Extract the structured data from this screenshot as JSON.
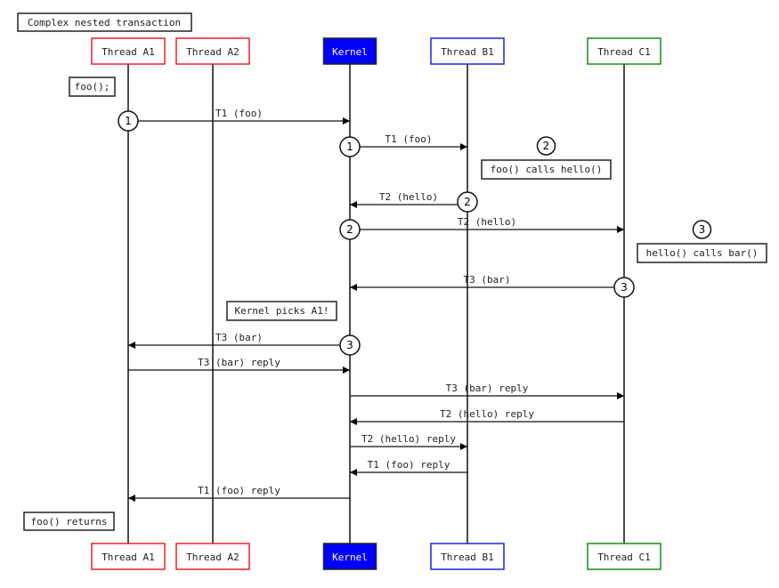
{
  "title": "Complex nested transaction",
  "participants": [
    {
      "id": "A1",
      "label": "Thread A1",
      "border": "#e8202a",
      "fill": "#ffffff",
      "text": "#222222"
    },
    {
      "id": "A2",
      "label": "Thread A2",
      "border": "#e8202a",
      "fill": "#ffffff",
      "text": "#222222"
    },
    {
      "id": "K",
      "label": "Kernel",
      "border": "#222222",
      "fill": "#0000ff",
      "text": "#ffffff"
    },
    {
      "id": "B1",
      "label": "Thread B1",
      "border": "#2020e0",
      "fill": "#ffffff",
      "text": "#222222"
    },
    {
      "id": "C1",
      "label": "Thread C1",
      "border": "#1a8a1a",
      "fill": "#ffffff",
      "text": "#222222"
    }
  ],
  "messages": [
    {
      "from": "A1",
      "to": "K",
      "label": "T1 (foo)",
      "marker": "1"
    },
    {
      "from": "K",
      "to": "B1",
      "label": "T1 (foo)",
      "marker": "1"
    },
    {
      "from": "B1",
      "to": "K",
      "label": "T2 (hello)",
      "marker": "2"
    },
    {
      "from": "K",
      "to": "C1",
      "label": "T2 (hello)",
      "marker": "2"
    },
    {
      "from": "C1",
      "to": "K",
      "label": "T3 (bar)",
      "marker": "3"
    },
    {
      "from": "K",
      "to": "A1",
      "label": "T3 (bar)",
      "marker": "3"
    },
    {
      "from": "A1",
      "to": "K",
      "label": "T3 (bar) reply",
      "marker": ""
    },
    {
      "from": "K",
      "to": "C1",
      "label": "T3 (bar) reply",
      "marker": ""
    },
    {
      "from": "C1",
      "to": "K",
      "label": "T2 (hello) reply",
      "marker": ""
    },
    {
      "from": "K",
      "to": "B1",
      "label": "T2 (hello) reply",
      "marker": ""
    },
    {
      "from": "B1",
      "to": "K",
      "label": "T1 (foo) reply",
      "marker": ""
    },
    {
      "from": "K",
      "to": "A1",
      "label": "T1 (foo) reply",
      "marker": ""
    }
  ],
  "notes": [
    {
      "text": "foo();",
      "marker": ""
    },
    {
      "text": "foo() calls hello()",
      "marker": "2"
    },
    {
      "text": "hello() calls bar()",
      "marker": "3"
    },
    {
      "text": "Kernel picks A1!",
      "marker": ""
    },
    {
      "text": "foo() returns",
      "marker": ""
    }
  ]
}
